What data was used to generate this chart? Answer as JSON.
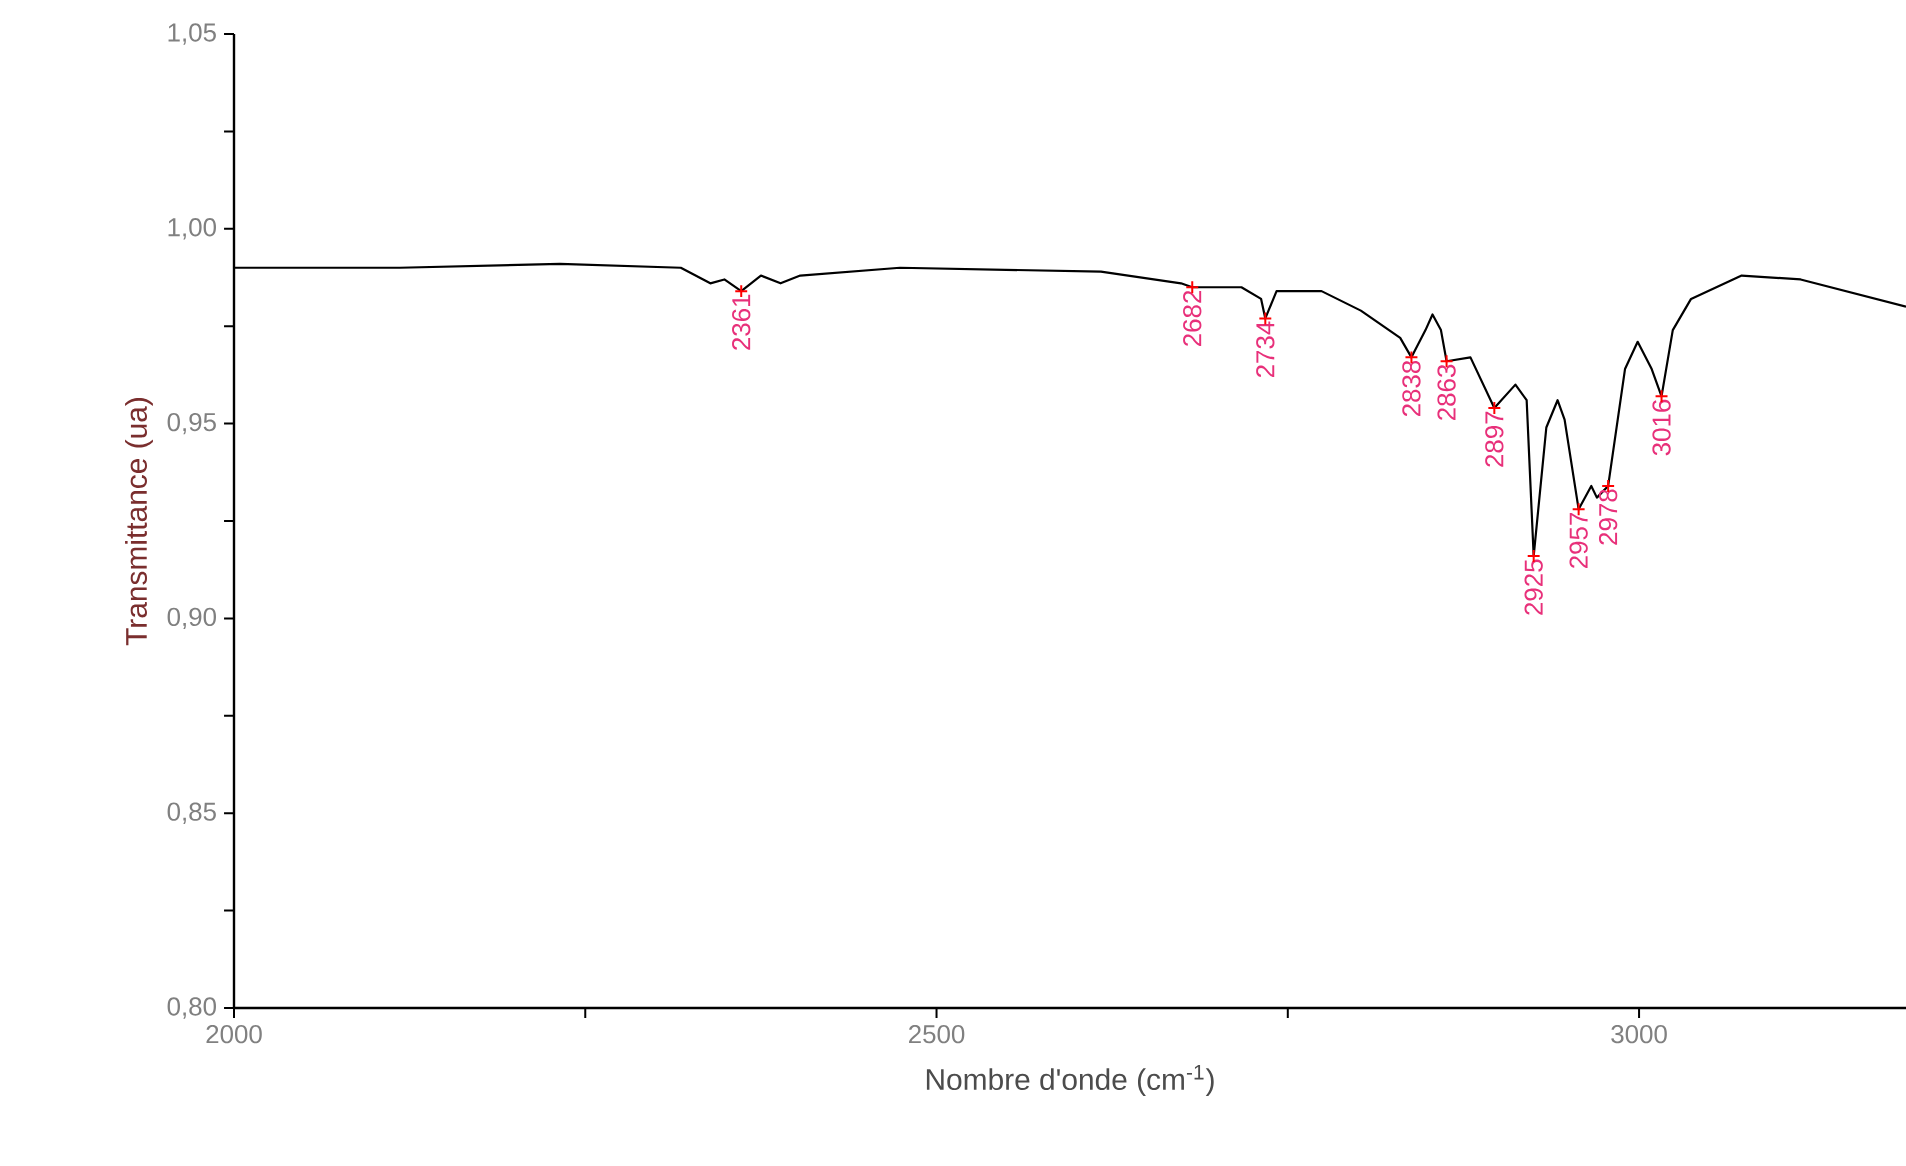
{
  "chart_data": {
    "type": "line",
    "xlabel": "Nombre d'onde (cm$^{-1}$)",
    "ylabel": "Transmittance (ua)",
    "xlim": [
      2000,
      3190
    ],
    "ylim": [
      0.8,
      1.05
    ],
    "xticks": [
      2000,
      {
        "value": 2250,
        "label": null
      },
      2500,
      {
        "value": 2750,
        "label": null
      },
      3000
    ],
    "yticks": [
      {
        "value": 0.8,
        "label": "0,80"
      },
      {
        "value": 0.825,
        "label": null
      },
      {
        "value": 0.85,
        "label": "0,85"
      },
      {
        "value": 0.875,
        "label": null
      },
      {
        "value": 0.9,
        "label": "0,90"
      },
      {
        "value": 0.925,
        "label": null
      },
      {
        "value": 0.95,
        "label": "0,95"
      },
      {
        "value": 0.975,
        "label": null
      },
      {
        "value": 1.0,
        "label": "1,00"
      },
      {
        "value": 1.025,
        "label": null
      },
      {
        "value": 1.05,
        "label": "1,05"
      }
    ],
    "color": "#000000",
    "line_style": "solid",
    "x": [
      2000,
      2118,
      2232,
      2318,
      2339,
      2349,
      2361,
      2375,
      2389,
      2403,
      2474,
      2617,
      2674,
      2682,
      2717,
      2731,
      2734,
      2742,
      2774,
      2802,
      2830,
      2838,
      2848,
      2853,
      2859,
      2863,
      2880,
      2897,
      2912,
      2920,
      2925,
      2934,
      2942,
      2947,
      2957,
      2966,
      2970,
      2978,
      2990,
      2999,
      3009,
      3016,
      3024,
      3037,
      3073,
      3115,
      3190
    ],
    "values": [
      0.99,
      0.99,
      0.991,
      0.99,
      0.986,
      0.987,
      0.984,
      0.988,
      0.986,
      0.988,
      0.99,
      0.989,
      0.986,
      0.985,
      0.985,
      0.982,
      0.977,
      0.984,
      0.984,
      0.979,
      0.972,
      0.967,
      0.974,
      0.978,
      0.974,
      0.966,
      0.967,
      0.954,
      0.96,
      0.956,
      0.916,
      0.949,
      0.956,
      0.951,
      0.928,
      0.934,
      0.931,
      0.934,
      0.964,
      0.971,
      0.964,
      0.957,
      0.974,
      0.982,
      0.988,
      0.987,
      0.98
    ],
    "annotations": [
      {
        "text": "2361",
        "x": 2361,
        "y": 0.984
      },
      {
        "text": "2682",
        "x": 2682,
        "y": 0.985
      },
      {
        "text": "2734",
        "x": 2734,
        "y": 0.977
      },
      {
        "text": "2838",
        "x": 2838,
        "y": 0.967
      },
      {
        "text": "2863",
        "x": 2863,
        "y": 0.966
      },
      {
        "text": "2897",
        "x": 2897,
        "y": 0.954
      },
      {
        "text": "2925",
        "x": 2925,
        "y": 0.916
      },
      {
        "text": "2957",
        "x": 2957,
        "y": 0.928
      },
      {
        "text": "2978",
        "x": 2978,
        "y": 0.934
      },
      {
        "text": "3016",
        "x": 3016,
        "y": 0.957
      }
    ]
  }
}
